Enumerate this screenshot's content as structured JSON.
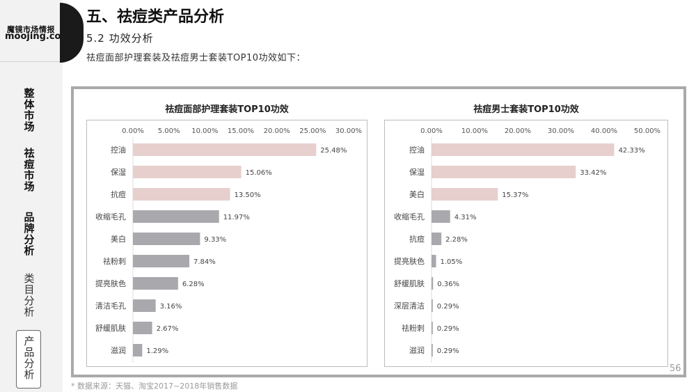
{
  "brand": {
    "name_cn": "魔镜市场情报",
    "name_en": "moojing.com"
  },
  "nav": {
    "items": [
      {
        "label": "整\n体\n市\n场"
      },
      {
        "label": "祛\n痘\n市\n场"
      },
      {
        "label": "品\n牌\n分\n析"
      },
      {
        "label": "类\n目\n分\n析"
      },
      {
        "label": "产\n品\n分\n析"
      }
    ]
  },
  "header": {
    "title": "五、祛痘类产品分析",
    "subtitle": "5.2 功效分析",
    "desc": "祛痘面部护理套装及祛痘男士套装TOP10功效如下："
  },
  "page_number": "56",
  "source_note": "* 数据来源：天猫、淘宝2017~2018年销售数据",
  "colors": {
    "pink": "#e6cfcd",
    "gray": "#a8a8ad"
  },
  "chart_data": [
    {
      "type": "bar",
      "orientation": "horizontal",
      "title": "祛痘面部护理套装TOP10功效",
      "categories": [
        "控油",
        "保湿",
        "抗痘",
        "收缩毛孔",
        "美白",
        "祛粉刺",
        "提亮肤色",
        "清洁毛孔",
        "舒缓肌肤",
        "滋润"
      ],
      "values": [
        25.48,
        15.06,
        13.5,
        11.97,
        9.33,
        7.84,
        6.28,
        3.16,
        2.67,
        1.29
      ],
      "value_labels": [
        "25.48%",
        "15.06%",
        "13.50%",
        "11.97%",
        "9.33%",
        "7.84%",
        "6.28%",
        "3.16%",
        "2.67%",
        "1.29%"
      ],
      "ticks": [
        "0.00%",
        "5.00%",
        "10.00%",
        "15.00%",
        "20.00%",
        "25.00%",
        "30.00%"
      ],
      "xlim": [
        0,
        30
      ],
      "highlight_top": 3
    },
    {
      "type": "bar",
      "orientation": "horizontal",
      "title": "祛痘男士套装TOP10功效",
      "categories": [
        "控油",
        "保湿",
        "美白",
        "收缩毛孔",
        "抗痘",
        "提亮肤色",
        "舒缓肌肤",
        "深层清洁",
        "祛粉刺",
        "滋润"
      ],
      "values": [
        42.33,
        33.42,
        15.37,
        4.31,
        2.28,
        1.05,
        0.36,
        0.29,
        0.29,
        0.29
      ],
      "value_labels": [
        "42.33%",
        "33.42%",
        "15.37%",
        "4.31%",
        "2.28%",
        "1.05%",
        "0.36%",
        "0.29%",
        "0.29%",
        "0.29%"
      ],
      "ticks": [
        "0.00%",
        "10.00%",
        "20.00%",
        "30.00%",
        "40.00%",
        "50.00%"
      ],
      "xlim": [
        0,
        50
      ],
      "highlight_top": 3
    }
  ]
}
